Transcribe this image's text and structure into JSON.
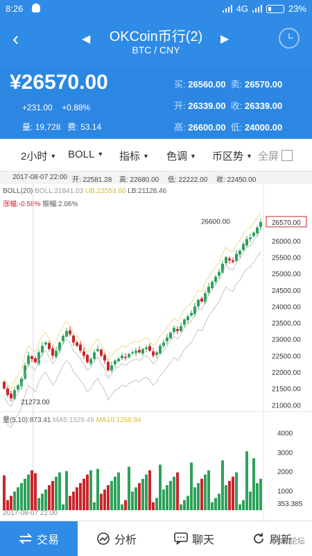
{
  "status": {
    "time": "8:26",
    "network": "4G",
    "battery": "23%",
    "battery_level": 0.23
  },
  "header": {
    "title": "OKCoin币行(2)",
    "subtitle": "BTC / CNY",
    "back_icon": "chevron-left-icon",
    "prev_icon": "triangle-left-icon",
    "next_icon": "triangle-right-icon",
    "clock_icon": "timer-icon"
  },
  "quote": {
    "price": "¥26570.00",
    "change": "+231.00",
    "change_pct": "+0.88%",
    "volume_label": "量:",
    "volume": "19,728",
    "fee_label": "费:",
    "fee": "53.14",
    "rows": [
      {
        "l1": "买:",
        "v1": "26560.00",
        "l2": "卖:",
        "v2": "26570.00"
      },
      {
        "l1": "开:",
        "v1": "26339.00",
        "l2": "收:",
        "v2": "26339.00"
      },
      {
        "l1": "高:",
        "v1": "26600.00",
        "l2": "低:",
        "v2": "24000.00"
      }
    ]
  },
  "toolbar": {
    "period": "2小时",
    "indicator": "BOLL",
    "index": "指标",
    "color": "色调",
    "trend": "币区势",
    "fullscreen": "全屏"
  },
  "info_line": {
    "date": "2017-08-07 22:00",
    "open": "开: 22581.28",
    "high": "高: 22680.00",
    "low": "低: 22222.00",
    "close": "收: 22450.00"
  },
  "boll": {
    "name": "BOLL(20)",
    "boll": "BOLL:21841.03",
    "ub": "UB:22553.60",
    "lb": "LB:21128.46",
    "rise": "涨幅:-0.58%",
    "amp": "振幅:2.06%"
  },
  "chart_data": {
    "type": "candlestick",
    "y_ticks": [
      "26570.00",
      "26000.00",
      "25500.00",
      "25000.00",
      "24500.00",
      "24000.00",
      "23500.00",
      "23000.00",
      "22500.00",
      "22000.00",
      "21500.00",
      "21000.00"
    ],
    "ylim": [
      20900,
      26800
    ],
    "high_marker": "26600.00",
    "low_marker": "21273.00",
    "volume_ticks": [
      "4000",
      "3000",
      "2000",
      "1000",
      "353.385"
    ],
    "volume_ylim": [
      0,
      4300
    ],
    "colors": {
      "up": "#2ea15a",
      "down": "#c8262c",
      "boll": "#b7b7b7",
      "ub": "#e8d36a",
      "accent": "#2f8be6"
    }
  },
  "volume_legend": {
    "name": "量(5,10):873.41",
    "ma5": "MA5:1329.49",
    "ma10": "MA10:1258.94"
  },
  "bottom_date": "2017-08-07 22:00",
  "tabs": [
    {
      "label": "交易",
      "icon": "swap-icon"
    },
    {
      "label": "分析",
      "icon": "chart-icon"
    },
    {
      "label": "聊天",
      "icon": "chat-icon"
    },
    {
      "label": "刷新",
      "icon": "refresh-icon"
    }
  ],
  "watermark": "水库论坛"
}
